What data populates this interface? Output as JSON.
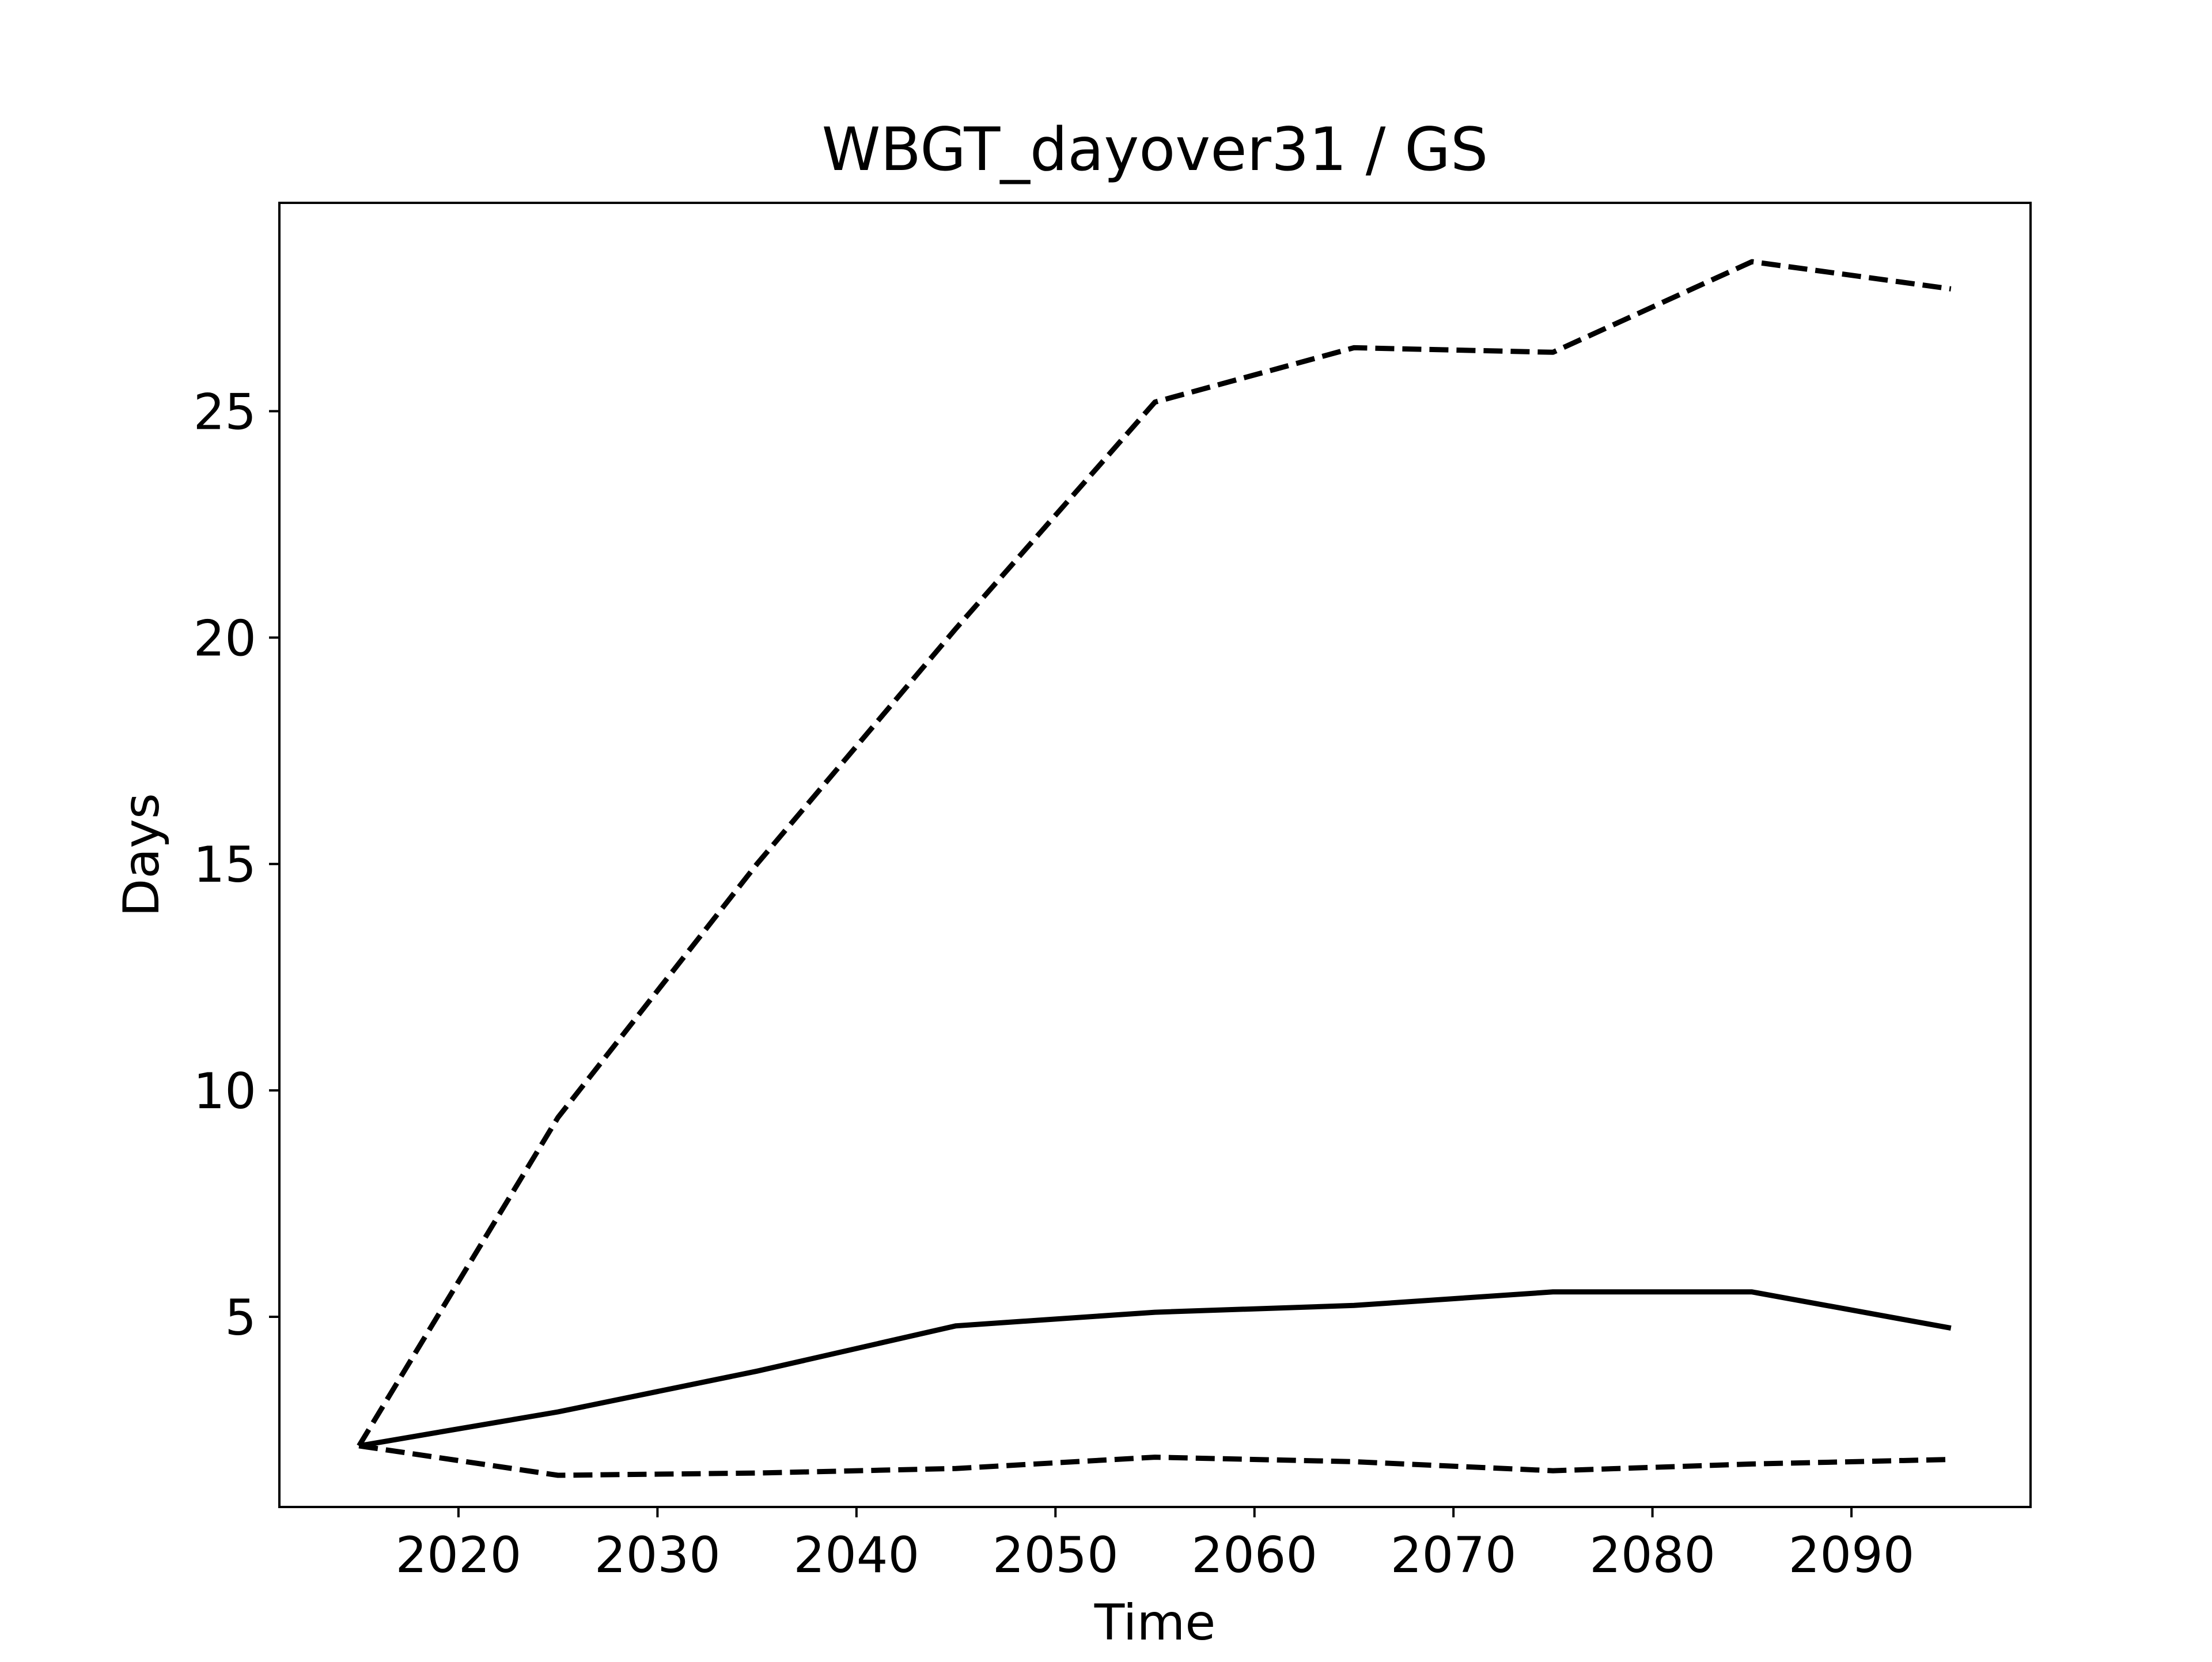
{
  "chart_data": {
    "type": "line",
    "title": "WBGT_dayover31 / GS",
    "xlabel": "Time",
    "ylabel": "Days",
    "xlim": [
      2011,
      2099
    ],
    "ylim": [
      0.8,
      29.6
    ],
    "xticks": [
      2020,
      2030,
      2040,
      2050,
      2060,
      2070,
      2080,
      2090
    ],
    "yticks": [
      5,
      10,
      15,
      20,
      25
    ],
    "grid": false,
    "x": [
      2015,
      2025,
      2035,
      2045,
      2055,
      2065,
      2075,
      2085,
      2095
    ],
    "series": [
      {
        "style": "dashed",
        "color": "#000000",
        "values": [
          2.15,
          9.4,
          15.0,
          20.2,
          25.2,
          26.4,
          26.3,
          28.3,
          27.7
        ]
      },
      {
        "style": "solid",
        "color": "#000000",
        "values": [
          2.15,
          2.9,
          3.8,
          4.8,
          5.1,
          5.25,
          5.55,
          5.55,
          4.75
        ]
      },
      {
        "style": "dashed",
        "color": "#000000",
        "values": [
          2.15,
          1.5,
          1.55,
          1.65,
          1.9,
          1.8,
          1.6,
          1.75,
          1.85
        ]
      }
    ]
  }
}
